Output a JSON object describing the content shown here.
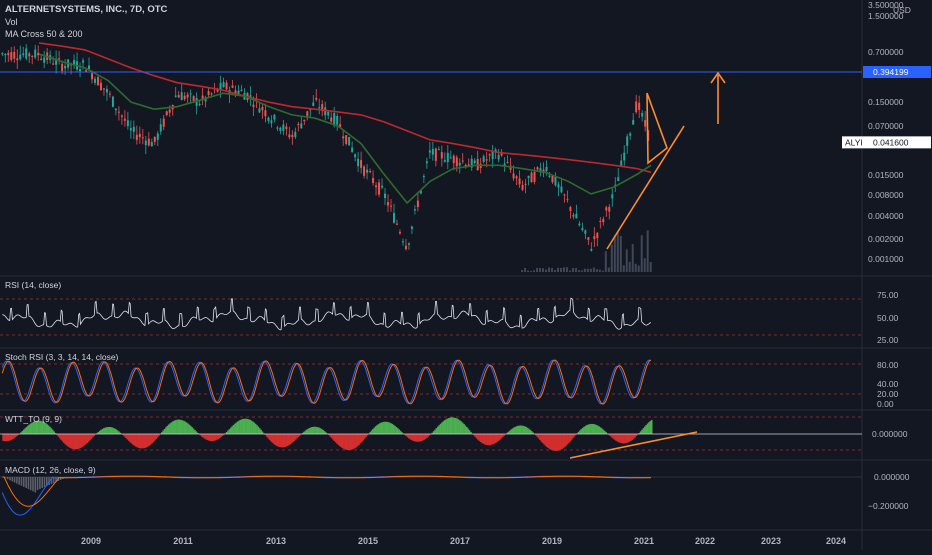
{
  "header": {
    "title": "ALTERNETSYSTEMS, INC., 7D, OTC",
    "volume_label": "Vol",
    "ma_label": "MA Cross 50 & 200",
    "currency": "USD"
  },
  "colors": {
    "background": "#131722",
    "candle_up": "#26a69a",
    "candle_down": "#ef5350",
    "ma50": "#2e6b2e",
    "ma200": "#c0272d",
    "hline": "#2962ff",
    "trend": "#ff8c2e",
    "rsi": "#e0e3eb",
    "stoch_k": "#2962ff",
    "stoch_d": "#ff6d00",
    "wtt_pos": "#4caf50",
    "wtt_neg": "#d32f2f",
    "macd": "#2962ff",
    "signal": "#ff6d00"
  },
  "price_axis": {
    "ticks": [
      "3.500000",
      "1.500000",
      "0.700000",
      "0.394199",
      "0.150000",
      "0.070000",
      "0.041600",
      "0.015000",
      "0.008000",
      "0.004000",
      "0.002000",
      "0.001000"
    ],
    "hline_value": "0.394199",
    "last_label": "ALYI",
    "last_value": "0.041600"
  },
  "x_axis": {
    "labels": [
      "2009",
      "2011",
      "2013",
      "2015",
      "2017",
      "2019",
      "2021",
      "2022",
      "2023",
      "2024"
    ]
  },
  "panes": {
    "rsi": {
      "label": "RSI (14, close)",
      "ticks": [
        "75.00",
        "50.00",
        "25.00"
      ]
    },
    "stoch": {
      "label": "Stoch RSI (3, 3, 14, 14, close)",
      "ticks": [
        "80.00",
        "40.00",
        "20.00",
        "0.00"
      ]
    },
    "wtt": {
      "label": "WTT_TO (9, 9)",
      "ticks": [
        "0.000000"
      ]
    },
    "macd": {
      "label": "MACD (12, 26, close, 9)",
      "ticks": [
        "0.000000",
        "−0.200000"
      ]
    }
  },
  "chart_data": {
    "type": "line",
    "title": "ALTERNETSYSTEMS, INC., 7D, OTC",
    "scale": "log",
    "ylim": [
      0.0005,
      3.5
    ],
    "x": [
      2008.0,
      2008.5,
      2009.0,
      2009.5,
      2010.0,
      2010.5,
      2011.0,
      2011.5,
      2012.0,
      2012.5,
      2013.0,
      2013.5,
      2014.0,
      2014.5,
      2015.0,
      2015.5,
      2016.0,
      2016.5,
      2017.0,
      2017.5,
      2018.0,
      2018.5,
      2019.0,
      2019.5,
      2020.0,
      2020.5,
      2021.0,
      2021.3
    ],
    "series": [
      {
        "name": "ALYI",
        "values": [
          0.7,
          0.5,
          0.5,
          0.2,
          0.06,
          0.04,
          0.2,
          0.15,
          0.25,
          0.2,
          0.1,
          0.05,
          0.15,
          0.08,
          0.02,
          0.008,
          0.0015,
          0.03,
          0.025,
          0.02,
          0.03,
          0.01,
          0.02,
          0.006,
          0.0015,
          0.008,
          0.15,
          0.0416
        ]
      },
      {
        "name": "MA 50",
        "values": [
          0.7,
          0.55,
          0.45,
          0.3,
          0.15,
          0.12,
          0.13,
          0.16,
          0.2,
          0.18,
          0.13,
          0.1,
          0.09,
          0.07,
          0.04,
          0.015,
          0.006,
          0.012,
          0.018,
          0.02,
          0.02,
          0.018,
          0.016,
          0.012,
          0.008,
          0.01,
          0.015,
          0.02
        ]
      },
      {
        "name": "MA 200",
        "values": [
          1.0,
          0.9,
          0.8,
          0.6,
          0.45,
          0.35,
          0.28,
          0.25,
          0.22,
          0.18,
          0.15,
          0.13,
          0.12,
          0.11,
          0.1,
          0.08,
          0.06,
          0.045,
          0.04,
          0.035,
          0.03,
          0.028,
          0.026,
          0.024,
          0.022,
          0.02,
          0.018,
          0.016
        ]
      }
    ],
    "annotations": {
      "horizontal_level": 0.394199,
      "last_price": 0.0416
    }
  }
}
